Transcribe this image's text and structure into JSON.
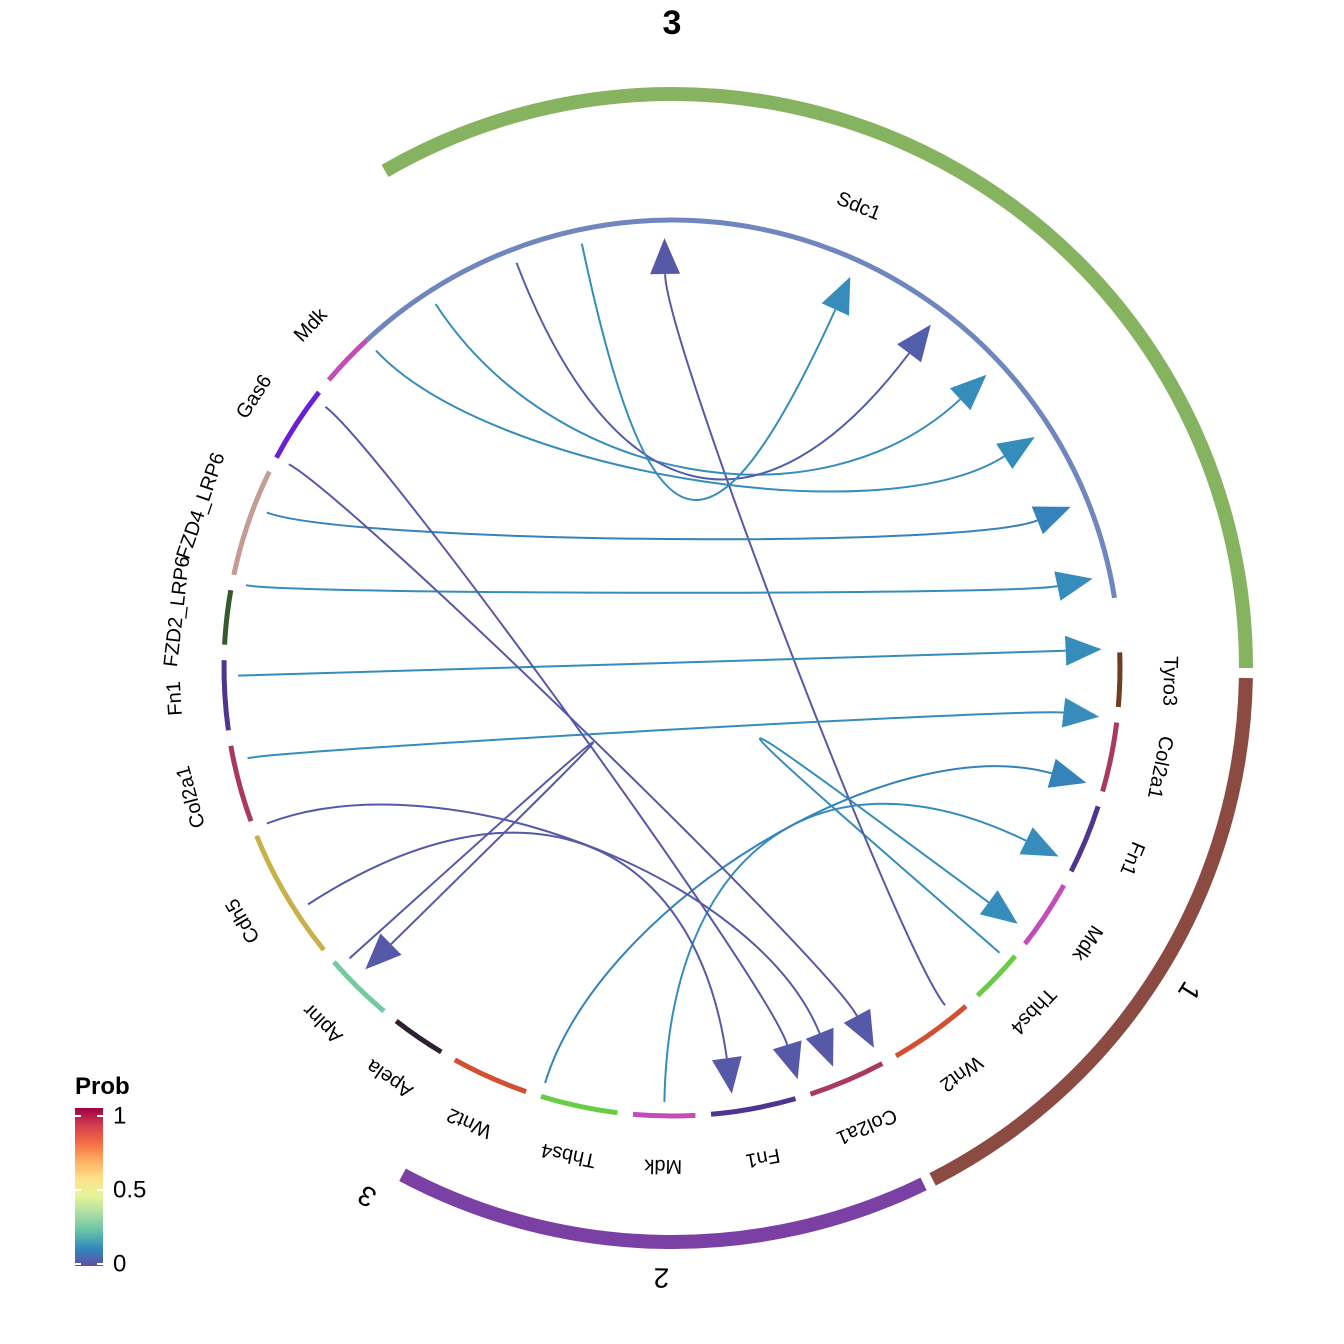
{
  "title": "3",
  "groups": [
    {
      "name": "3",
      "color": "#86b35f"
    },
    {
      "name": "1",
      "color": "#8b4a42"
    },
    {
      "name": "2",
      "color": "#7a40a3"
    }
  ],
  "sectors": [
    {
      "label": "Sdc1",
      "color": "#6f86be"
    },
    {
      "label": "Tyro3",
      "color": "#6b3f20"
    },
    {
      "label": "Col2a1",
      "color": "#a83a5c"
    },
    {
      "label": "Fn1",
      "color": "#4e3590"
    },
    {
      "label": "Mdk",
      "color": "#c24db6"
    },
    {
      "label": "Thbs4",
      "color": "#69cc45"
    },
    {
      "label": "Wnt2",
      "color": "#d24f31"
    },
    {
      "label": "Col2a1",
      "color": "#a83a5c"
    },
    {
      "label": "Fn1",
      "color": "#4e3590"
    },
    {
      "label": "Mdk",
      "color": "#c24db6"
    },
    {
      "label": "Thbs4",
      "color": "#69cc45"
    },
    {
      "label": "Wnt2",
      "color": "#d24f31"
    },
    {
      "label": "Apela",
      "color": "#2d2131"
    },
    {
      "label": "Aplnr",
      "color": "#74c9a0"
    },
    {
      "label": "Cdh5",
      "color": "#c8b14a"
    },
    {
      "label": "Col2a1",
      "color": "#a83a5c"
    },
    {
      "label": "Fn1",
      "color": "#4e3590"
    },
    {
      "label": "FZD2_LRP6",
      "color": "#365a2e"
    },
    {
      "label": "FZD4_LRP6",
      "color": "#c49c94"
    },
    {
      "label": "Gas6",
      "color": "#6b1fd2"
    },
    {
      "label": "Mdk",
      "color": "#c24db6"
    }
  ],
  "legend": {
    "title": "Prob",
    "ticks": [
      "1",
      "0.5",
      "0"
    ],
    "colors": [
      "#9e0142",
      "#d53e4f",
      "#f46d43",
      "#fdae61",
      "#fee08b",
      "#e6f598",
      "#abdda4",
      "#66c2a5",
      "#3288bd",
      "#5e4fa2"
    ]
  },
  "links": [
    {
      "source": "Mdk",
      "target": "Sdc1",
      "prob": 0.12
    },
    {
      "source": "Gas6",
      "target": "Tyro3",
      "prob": 0.02
    },
    {
      "source": "Fn1",
      "target": "Sdc1",
      "prob": 0.12
    },
    {
      "source": "Col2a1",
      "target": "Sdc1",
      "prob": 0.1
    },
    {
      "source": "Apela",
      "target": "Aplnr",
      "prob": 0.02
    },
    {
      "source": "Wnt2",
      "target": "FZD2_LRP6",
      "prob": 0.02
    },
    {
      "source": "Wnt2",
      "target": "FZD4_LRP6",
      "prob": 0.02
    },
    {
      "source": "Thbs4",
      "target": "Sdc1",
      "prob": 0.12
    },
    {
      "source": "Mdk",
      "target": "Sdc1",
      "prob": 0.12
    },
    {
      "source": "Fn1",
      "target": "Sdc1",
      "prob": 0.12
    },
    {
      "source": "Col2a1",
      "target": "Sdc1",
      "prob": 0.1
    },
    {
      "source": "Wnt2",
      "target": "FZD4_LRP6",
      "prob": 0.02
    },
    {
      "source": "Wnt2",
      "target": "FZD2_LRP6",
      "prob": 0.02
    },
    {
      "source": "Thbs4",
      "target": "Sdc1",
      "prob": 0.12
    },
    {
      "source": "Mdk",
      "target": "Sdc1",
      "prob": 0.12
    },
    {
      "source": "Fn1",
      "target": "Sdc1",
      "prob": 0.03
    },
    {
      "source": "Col2a1",
      "target": "Sdc1",
      "prob": 0.12
    }
  ]
}
